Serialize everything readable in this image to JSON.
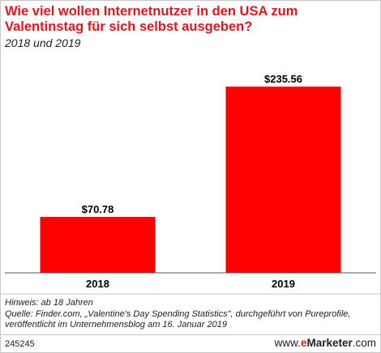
{
  "header": {
    "title": "Wie viel wollen Internetnutzer in den USA zum Valentinstag für sich selbst ausgeben?",
    "subtitle": "2018 und 2019"
  },
  "footer": {
    "note": "Hinweis: ab 18 Jahren",
    "source_line1": "Quelle: Finder.com, „Valentine's Day Spending Statistics\", durchgeführt von Pureprofile,",
    "source_line2": "veröffentlicht im Unternehmensblog am 16. Januar 2019",
    "chart_id": "245245",
    "brand_prefix": "www.",
    "brand_e": "e",
    "brand_name": "Marketer",
    "brand_suffix": ".com"
  },
  "colors": {
    "bar": "#ff0000",
    "title": "#e8141b"
  },
  "chart_data": {
    "type": "bar",
    "title": "Wie viel wollen Internetnutzer in den USA zum Valentinstag für sich selbst ausgeben?",
    "subtitle": "2018 und 2019",
    "categories": [
      "2018",
      "2019"
    ],
    "values": [
      70.78,
      235.56
    ],
    "data_labels": [
      "$70.78",
      "$235.56"
    ],
    "ylim": [
      0,
      258
    ],
    "grid": false,
    "xlabel": "",
    "ylabel": ""
  }
}
